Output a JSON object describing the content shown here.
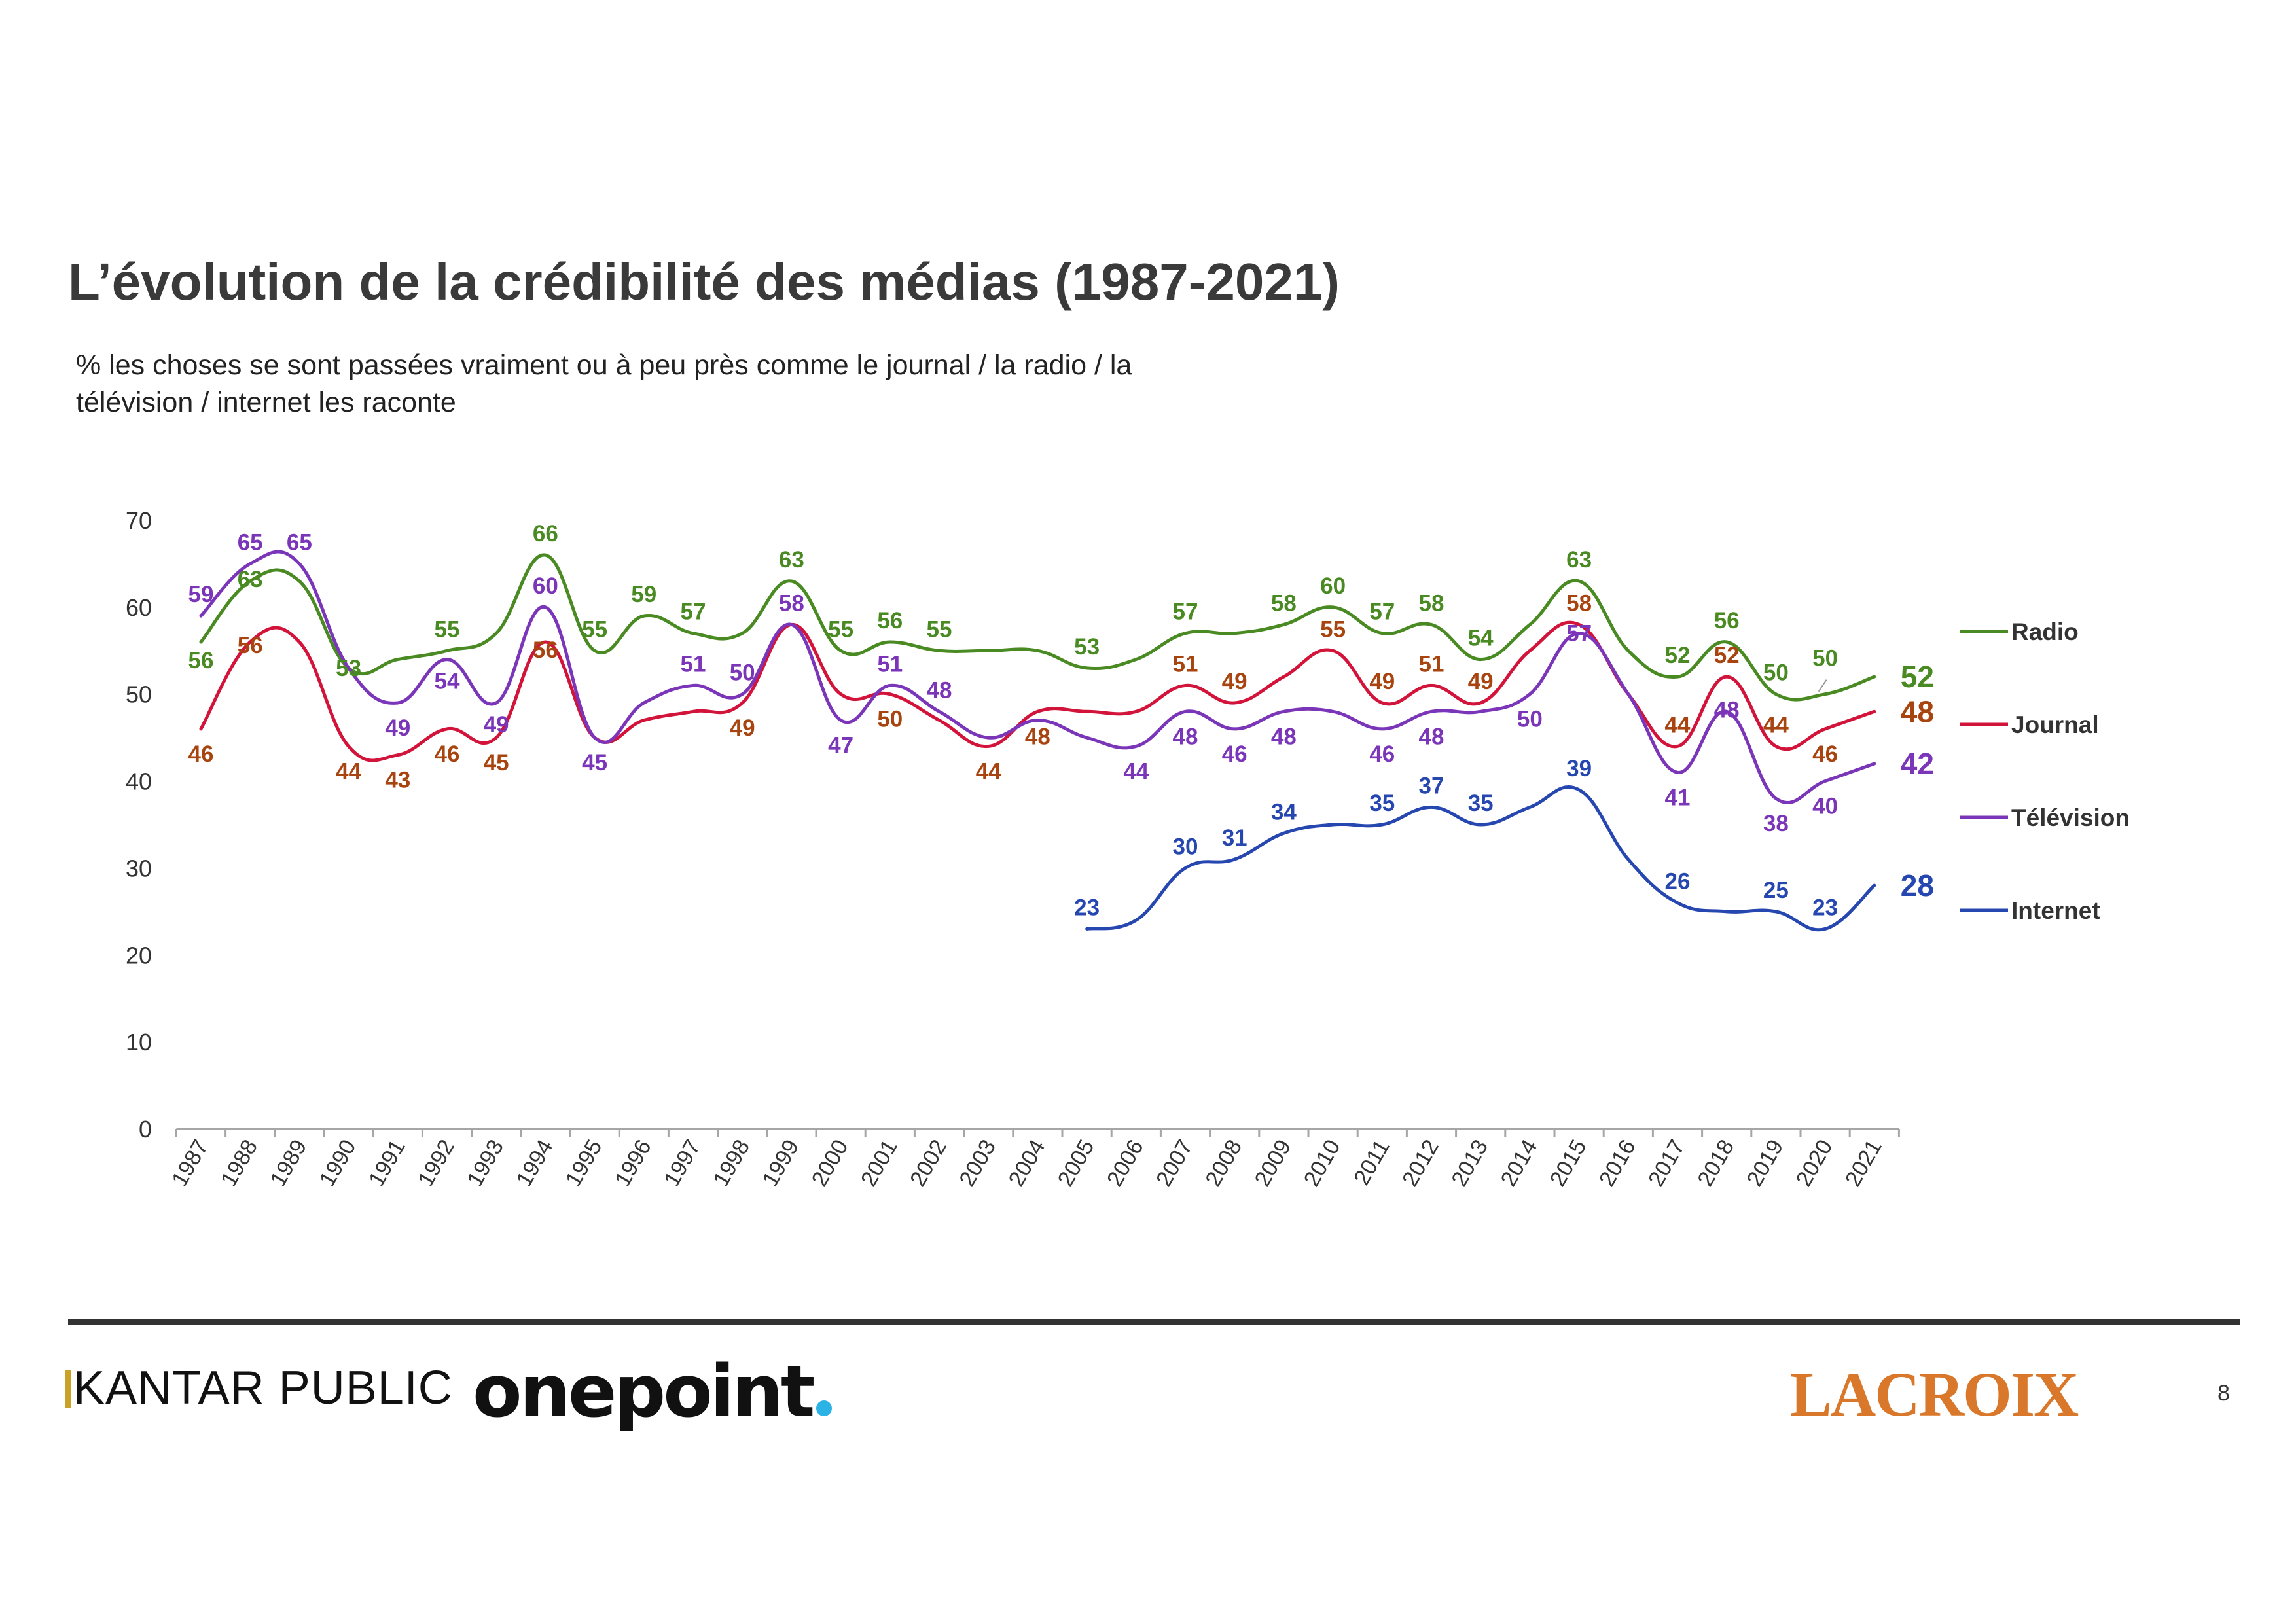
{
  "slide": {
    "title": "L’évolution de la crédibilité des médias (1987-2021)",
    "subtitle": "% les choses se sont passées vraiment ou à peu près comme le journal / la radio / la télévision / internet les raconte",
    "page_number": "8"
  },
  "logos": {
    "kantar": "KANTAR PUBLIC",
    "onepoint": "onepoint",
    "lacroix": "LACROIX"
  },
  "chart_data": {
    "type": "line",
    "title": "",
    "xlabel": "",
    "ylabel": "",
    "ylim": [
      0,
      70
    ],
    "yticks": [
      0,
      10,
      20,
      30,
      40,
      50,
      60,
      70
    ],
    "grid": false,
    "legend_position": "right",
    "x": [
      "1987",
      "1988",
      "1989",
      "1990",
      "1991",
      "1992",
      "1993",
      "1994",
      "1995",
      "1996",
      "1997",
      "1998",
      "1999",
      "2000",
      "2001",
      "2002",
      "2003",
      "2004",
      "2005",
      "2006",
      "2007",
      "2008",
      "2009",
      "2010",
      "2011",
      "2012",
      "2013",
      "2014",
      "2015",
      "2016",
      "2017",
      "2018",
      "2019",
      "2020",
      "2021"
    ],
    "series": [
      {
        "name": "Radio",
        "color": "#4a8a22",
        "label_color": "#4a8a22",
        "values": [
          56,
          63,
          63,
          53,
          54,
          55,
          57,
          66,
          55,
          59,
          57,
          57,
          63,
          55,
          56,
          55,
          55,
          55,
          53,
          54,
          57,
          57,
          58,
          60,
          57,
          58,
          54,
          58,
          63,
          55,
          52,
          56,
          50,
          50,
          52
        ],
        "labels": {
          "0": 56,
          "1": 63,
          "3": 53,
          "5": 55,
          "7": 66,
          "8": 55,
          "9": 59,
          "10": 57,
          "12": 63,
          "13": 55,
          "14": 56,
          "15": 55,
          "18": 53,
          "20": 57,
          "22": 58,
          "23": 60,
          "24": 57,
          "25": 58,
          "26": 54,
          "28": 63,
          "30": 52,
          "31": 56,
          "32": 50,
          "33": 50
        }
      },
      {
        "name": "Journal",
        "color": "#d3143a",
        "label_color": "#a84410",
        "values": [
          46,
          56,
          56,
          44,
          43,
          46,
          45,
          56,
          45,
          47,
          48,
          49,
          58,
          50,
          50,
          47,
          44,
          48,
          48,
          48,
          51,
          49,
          52,
          55,
          49,
          51,
          49,
          55,
          58,
          50,
          44,
          52,
          44,
          46,
          48
        ],
        "labels": {
          "0": 46,
          "1": 56,
          "3": 44,
          "4": 43,
          "5": 46,
          "6": 45,
          "7": 56,
          "11": 49,
          "14": 50,
          "16": 44,
          "17": 48,
          "20": 51,
          "21": 49,
          "23": 55,
          "24": 49,
          "25": 51,
          "26": 49,
          "28": 58,
          "30": 44,
          "31": 52,
          "32": 44,
          "33": 46
        }
      },
      {
        "name": "Télévision",
        "color": "#7a35b8",
        "label_color": "#7a35b8",
        "values": [
          59,
          65,
          65,
          53,
          49,
          54,
          49,
          60,
          45,
          49,
          51,
          50,
          58,
          47,
          51,
          48,
          45,
          47,
          45,
          44,
          48,
          46,
          48,
          48,
          46,
          48,
          48,
          50,
          57,
          50,
          41,
          48,
          38,
          40,
          42
        ],
        "labels": {
          "0": 59,
          "1": 65,
          "2": 65,
          "4": 49,
          "5": 54,
          "6": 49,
          "7": 60,
          "8": 45,
          "10": 51,
          "11": 50,
          "12": 58,
          "13": 47,
          "14": 51,
          "15": 48,
          "19": 44,
          "20": 48,
          "21": 46,
          "22": 48,
          "24": 46,
          "25": 48,
          "27": 50,
          "28": 57,
          "30": 41,
          "31": 48,
          "32": 38,
          "33": 40
        }
      },
      {
        "name": "Internet",
        "color": "#2646b0",
        "label_color": "#2646b0",
        "values": [
          null,
          null,
          null,
          null,
          null,
          null,
          null,
          null,
          null,
          null,
          null,
          null,
          null,
          null,
          null,
          null,
          null,
          null,
          23,
          24,
          30,
          31,
          34,
          35,
          35,
          37,
          35,
          37,
          39,
          31,
          26,
          25,
          25,
          23,
          28
        ],
        "labels": {
          "18": 23,
          "20": 30,
          "21": 31,
          "22": 34,
          "24": 35,
          "25": 37,
          "26": 35,
          "28": 39,
          "30": 26,
          "32": 25,
          "33": 23
        }
      }
    ],
    "end_labels": [
      {
        "series": "Radio",
        "value": "52"
      },
      {
        "series": "Journal",
        "value": "48"
      },
      {
        "series": "Télévision",
        "value": "42"
      },
      {
        "series": "Internet",
        "value": "28"
      }
    ]
  }
}
